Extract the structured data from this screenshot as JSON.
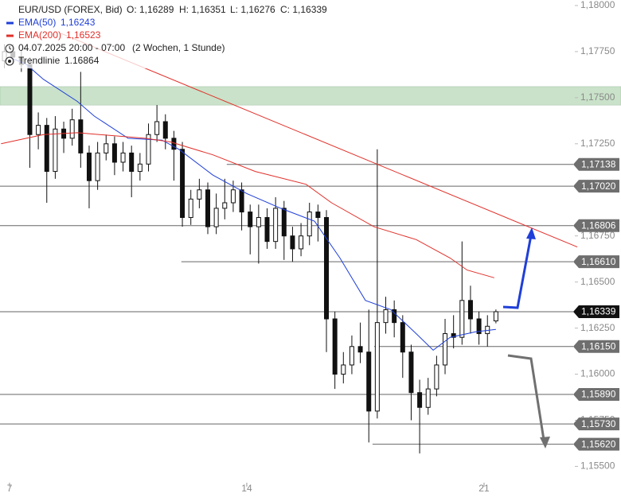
{
  "chart_data": {
    "type": "candlestick",
    "title": "EUR/USD (FOREX, Bid)",
    "ohlc_labels": [
      "O: 1,16289",
      "H: 1,16351",
      "L: 1,16276",
      "C: 1,16339"
    ],
    "period": "04.07.2025 20:00 - 07:00",
    "timeframe": "(2 Wochen, 1 Stunde)",
    "xlim": [
      6.72,
      25.04
    ],
    "ylim": [
      1.1542,
      1.1803
    ],
    "xticks": [
      7,
      14,
      21
    ],
    "yticks": [
      {
        "value": 1.18,
        "label": "1,18000"
      },
      {
        "value": 1.1775,
        "label": "1,17750"
      },
      {
        "value": 1.175,
        "label": "1,17500"
      },
      {
        "value": 1.1725,
        "label": "1,17250"
      },
      {
        "value": 1.1675,
        "label": "1,16750"
      },
      {
        "value": 1.165,
        "label": "1,16500"
      },
      {
        "value": 1.1625,
        "label": "1,16250"
      },
      {
        "value": 1.16,
        "label": "1,16000"
      },
      {
        "value": 1.1575,
        "label": "1,15750"
      },
      {
        "value": 1.155,
        "label": "1,15500"
      }
    ],
    "zone": {
      "from": 1.1746,
      "to": 1.1756,
      "color": "#c9e2c9"
    },
    "x": [
      6.85,
      7.1,
      7.35,
      7.6,
      7.85,
      8.1,
      8.35,
      8.6,
      8.85,
      9.1,
      9.35,
      9.6,
      9.85,
      10.1,
      10.35,
      10.6,
      10.85,
      11.1,
      11.35,
      11.6,
      11.85,
      12.1,
      12.35,
      12.6,
      12.85,
      13.1,
      13.35,
      13.6,
      13.85,
      14.1,
      14.35,
      14.6,
      14.85,
      15.1,
      15.35,
      15.6,
      15.85,
      16.1,
      16.35,
      16.6,
      16.85,
      17.1,
      17.35,
      17.6,
      17.85,
      18.1,
      18.35,
      18.6,
      18.85,
      19.1,
      19.35,
      19.6,
      19.85,
      20.1,
      20.35,
      20.6,
      20.85,
      21.1,
      21.35
    ],
    "open": [
      1.177,
      1.1775,
      1.1772,
      1.1768,
      1.173,
      1.1735,
      1.171,
      1.1733,
      1.1728,
      1.1738,
      1.172,
      1.1705,
      1.172,
      1.1725,
      1.1715,
      1.172,
      1.171,
      1.1714,
      1.173,
      1.1737,
      1.1728,
      1.1722,
      1.1685,
      1.1695,
      1.17,
      1.168,
      1.169,
      1.1693,
      1.17,
      1.1688,
      1.168,
      1.1685,
      1.1672,
      1.169,
      1.1675,
      1.1668,
      1.1675,
      1.1688,
      1.1685,
      1.163,
      1.16,
      1.1605,
      1.1615,
      1.1612,
      1.158,
      1.1628,
      1.1635,
      1.1628,
      1.1612,
      1.159,
      1.1582,
      1.1592,
      1.1605,
      1.1622,
      1.162,
      1.164,
      1.163,
      1.1622,
      1.16289
    ],
    "high": [
      1.1779,
      1.1779,
      1.1776,
      1.1772,
      1.1742,
      1.1739,
      1.174,
      1.1737,
      1.1744,
      1.1764,
      1.1724,
      1.1726,
      1.173,
      1.1729,
      1.1726,
      1.1724,
      1.172,
      1.1736,
      1.1746,
      1.1741,
      1.1732,
      1.1726,
      1.17,
      1.1706,
      1.1704,
      1.1698,
      1.1706,
      1.1705,
      1.1704,
      1.1692,
      1.1692,
      1.169,
      1.1696,
      1.1694,
      1.168,
      1.1682,
      1.1693,
      1.1692,
      1.1689,
      1.1634,
      1.1612,
      1.1621,
      1.1628,
      1.1635,
      1.1722,
      1.1642,
      1.164,
      1.1632,
      1.1616,
      1.1597,
      1.1598,
      1.161,
      1.163,
      1.1632,
      1.1672,
      1.1648,
      1.1634,
      1.1632,
      1.16351
    ],
    "low": [
      1.1766,
      1.1768,
      1.1764,
      1.1712,
      1.1722,
      1.1693,
      1.1706,
      1.172,
      1.1724,
      1.1712,
      1.169,
      1.17,
      1.1716,
      1.1708,
      1.171,
      1.1696,
      1.1705,
      1.171,
      1.1726,
      1.1722,
      1.1705,
      1.168,
      1.1681,
      1.169,
      1.1676,
      1.1676,
      1.1684,
      1.1688,
      1.1678,
      1.1665,
      1.166,
      1.1668,
      1.1668,
      1.1662,
      1.1661,
      1.1664,
      1.167,
      1.1672,
      1.1612,
      1.1592,
      1.1595,
      1.16,
      1.1606,
      1.1563,
      1.1576,
      1.1622,
      1.162,
      1.1598,
      1.1575,
      1.1557,
      1.1578,
      1.1588,
      1.16,
      1.1614,
      1.1616,
      1.1622,
      1.1616,
      1.1615,
      1.16276
    ],
    "close": [
      1.1775,
      1.1772,
      1.1768,
      1.173,
      1.1735,
      1.171,
      1.1733,
      1.1728,
      1.1738,
      1.172,
      1.1705,
      1.172,
      1.1725,
      1.1715,
      1.172,
      1.171,
      1.1714,
      1.173,
      1.1737,
      1.1728,
      1.1722,
      1.1685,
      1.1695,
      1.17,
      1.168,
      1.169,
      1.1693,
      1.17,
      1.1688,
      1.168,
      1.1685,
      1.1672,
      1.169,
      1.1675,
      1.1668,
      1.1675,
      1.1688,
      1.1685,
      1.163,
      1.16,
      1.1605,
      1.1615,
      1.1612,
      1.158,
      1.1628,
      1.1635,
      1.1628,
      1.1612,
      1.159,
      1.1582,
      1.1592,
      1.1605,
      1.1622,
      1.162,
      1.164,
      1.163,
      1.1622,
      1.1626,
      1.16339
    ],
    "series": [
      {
        "name": "EMA(50)",
        "color": "#1f3fd8",
        "last_label": "1,16243",
        "x": [
          7.0,
          7.5,
          8.0,
          9.0,
          9.5,
          10.5,
          11.5,
          12.0,
          13.0,
          14.0,
          15.0,
          16.0,
          16.75,
          17.5,
          18.25,
          19.0,
          19.5,
          20.0,
          20.75,
          21.35
        ],
        "values": [
          1.1772,
          1.1768,
          1.176,
          1.1748,
          1.174,
          1.1728,
          1.1727,
          1.1722,
          1.1708,
          1.1698,
          1.169,
          1.1683,
          1.1663,
          1.164,
          1.1635,
          1.1622,
          1.1613,
          1.162,
          1.1623,
          1.16243
        ]
      },
      {
        "name": "EMA(200)",
        "color": "#e0302a",
        "last_label": "1,16523",
        "x": [
          6.75,
          8.0,
          9.0,
          11.0,
          11.75,
          13.0,
          14.25,
          15.75,
          16.5,
          17.75,
          19.0,
          20.0,
          20.5,
          21.3
        ],
        "values": [
          1.1725,
          1.173,
          1.1731,
          1.1728,
          1.1726,
          1.1719,
          1.171,
          1.1703,
          1.1693,
          1.168,
          1.1673,
          1.1663,
          1.16565,
          1.16523
        ]
      },
      {
        "name": "Trendlinie",
        "color": "#e0302a",
        "last_label": "1.16864",
        "x": [
          8.5,
          23.75
        ],
        "values": [
          1.1785,
          1.1669
        ]
      }
    ],
    "levels": [
      {
        "value": 1.17138,
        "label": "1,17138",
        "start": 13.41,
        "color": "#6e6e6e"
      },
      {
        "value": 1.1702,
        "label": "1,17020",
        "color": "#6e6e6e"
      },
      {
        "value": 1.16806,
        "label": "1,16806",
        "color": "#6e6e6e"
      },
      {
        "value": 1.1661,
        "label": "1,16610",
        "start": 12.07,
        "color": "#6e6e6e"
      },
      {
        "value": 1.16339,
        "label": "1,16339",
        "color": "#111111"
      },
      {
        "value": 1.1615,
        "label": "1,16150",
        "start": 17.76,
        "color": "#6e6e6e"
      },
      {
        "value": 1.1589,
        "label": "1,15890",
        "color": "#6e6e6e"
      },
      {
        "value": 1.1573,
        "label": "1,15730",
        "color": "#6e6e6e"
      },
      {
        "value": 1.1562,
        "label": "1,15620",
        "start": 17.71,
        "color": "#6e6e6e"
      }
    ]
  }
}
